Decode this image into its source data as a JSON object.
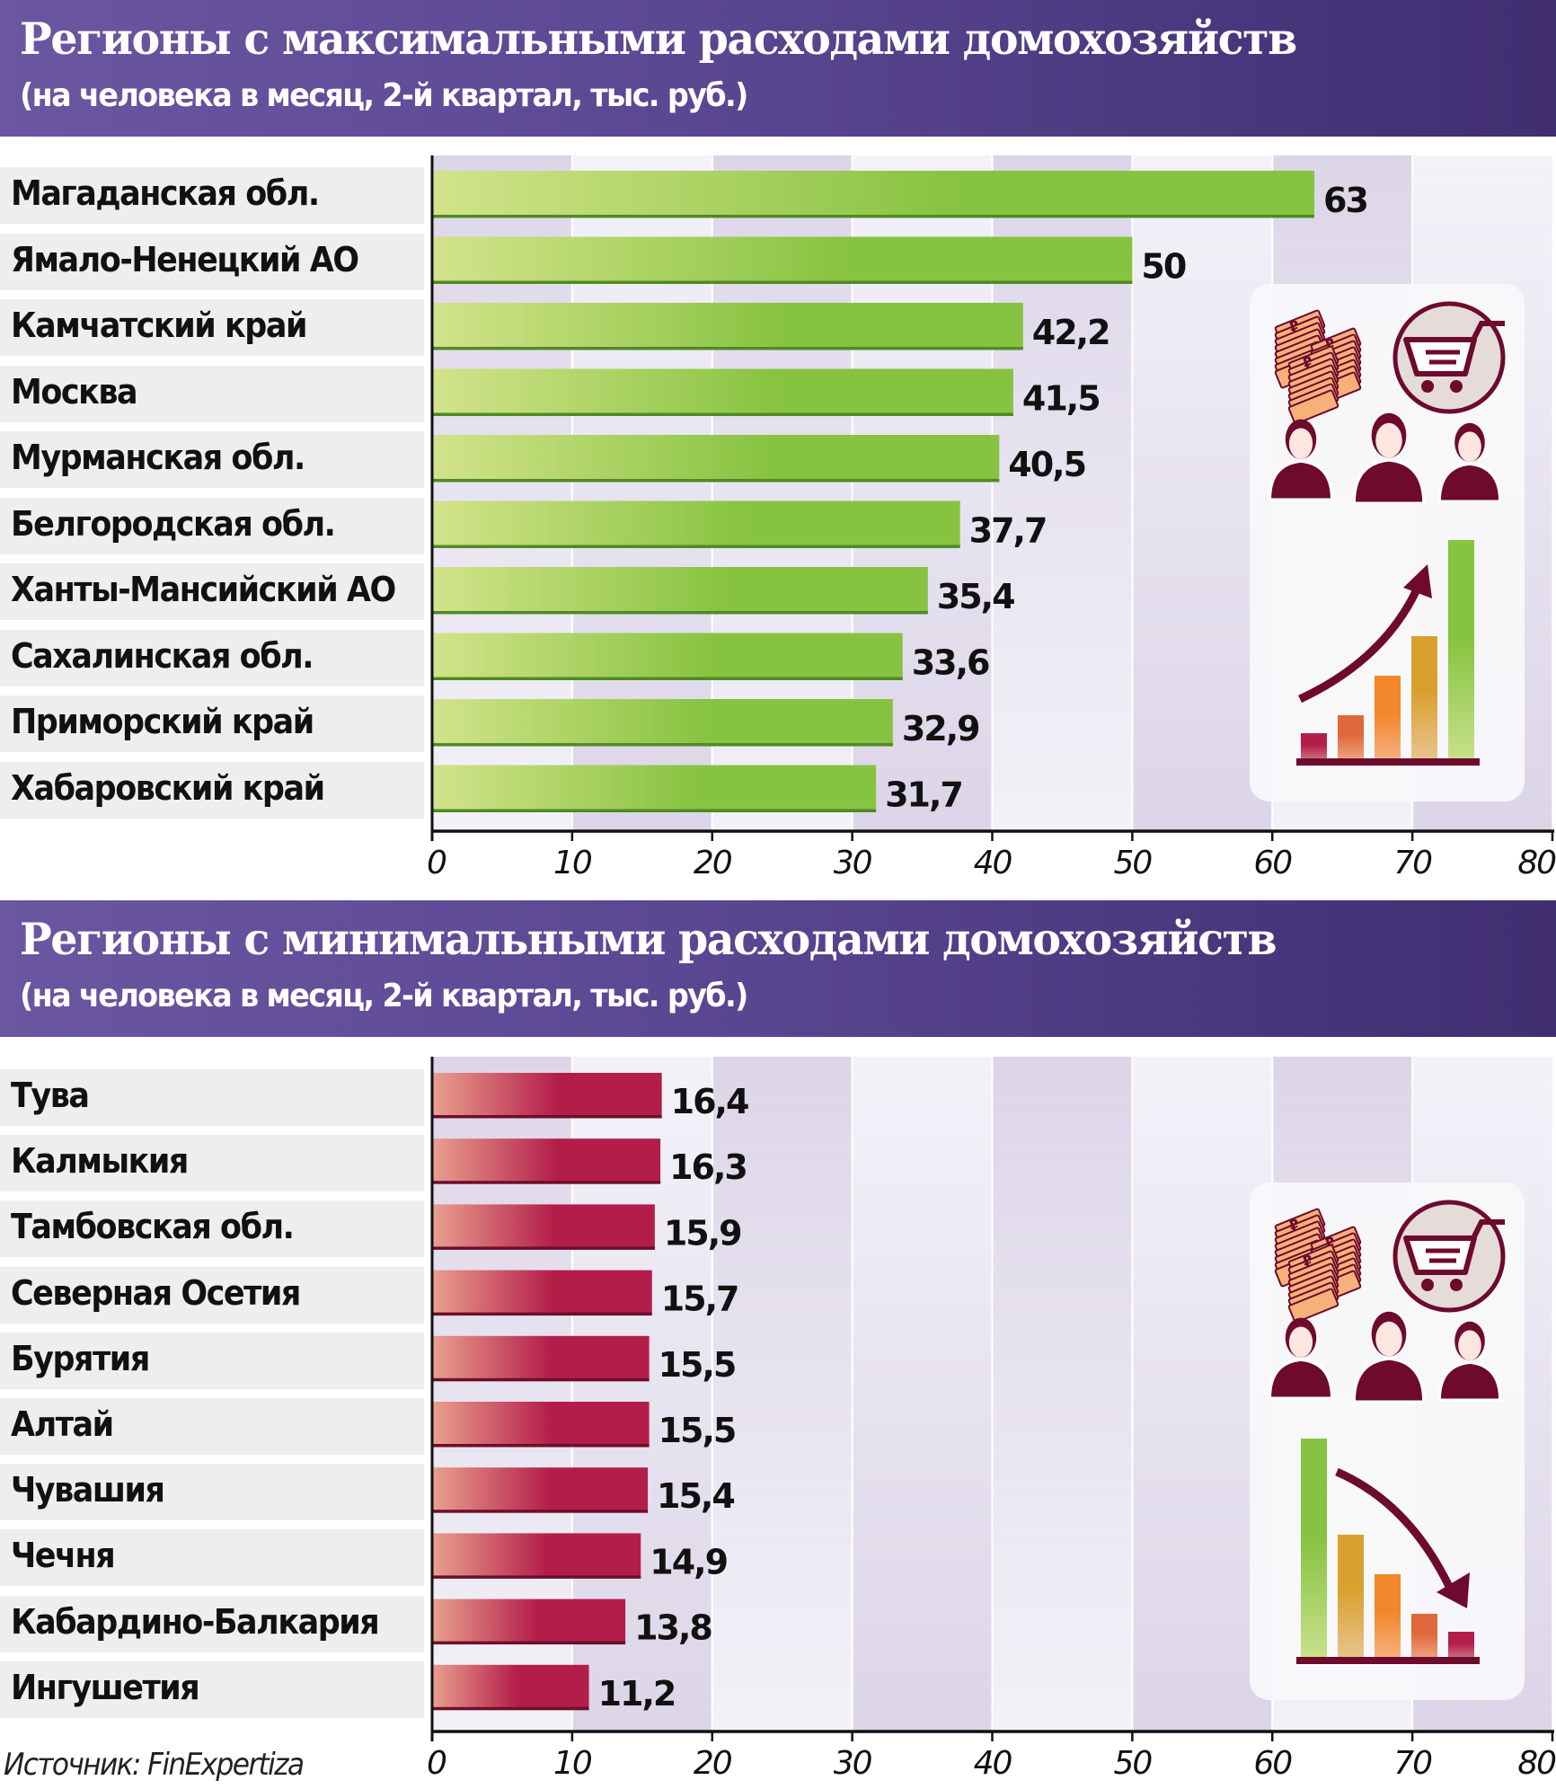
{
  "colors": {
    "header_left": "#6b56a1",
    "header_right": "#3f2e70",
    "max_bar_light": "#d3e38a",
    "max_bar_dark": "#86c340",
    "max_bar_edge": "#4f8a24",
    "min_bar_light": "#eaa08e",
    "min_bar_dark": "#b31d4a",
    "min_bar_edge": "#6e0d2a",
    "stripe_lavender": "#dcd5e8",
    "stripe_light": "#f3f2f8",
    "icon_dark": "#6d0a2d"
  },
  "chart_data": [
    {
      "type": "bar",
      "orientation": "horizontal",
      "title": "Регионы с максимальными расходами домохозяйств",
      "subtitle": "(на человека в месяц, 2-й квартал, тыс. руб.)",
      "categories": [
        "Магаданская обл.",
        "Ямало-Ненецкий АО",
        "Камчатский край",
        "Москва",
        "Мурманская обл.",
        "Белгородская обл.",
        "Ханты-Мансийский АО",
        "Сахалинская обл.",
        "Приморский край",
        "Хабаровский край"
      ],
      "values": [
        63,
        50,
        42.2,
        41.5,
        40.5,
        37.7,
        35.4,
        33.6,
        32.9,
        31.7
      ],
      "value_labels": [
        "63",
        "50",
        "42,2",
        "41,5",
        "40,5",
        "37,7",
        "35,4",
        "33,6",
        "32,9",
        "31,7"
      ],
      "xlim": [
        0,
        80
      ],
      "xticks": [
        0,
        10,
        20,
        30,
        40,
        50,
        60,
        70,
        80
      ],
      "xtick_labels": [
        "0",
        "10",
        "20",
        "30",
        "40",
        "50",
        "60",
        "70",
        "80"
      ],
      "xlabel": "",
      "ylabel": "",
      "grid": true,
      "trend_icon": "rising-bar-chart-icon"
    },
    {
      "type": "bar",
      "orientation": "horizontal",
      "title": "Регионы с минимальными расходами домохозяйств",
      "subtitle": "(на человека в месяц, 2-й квартал, тыс. руб.)",
      "categories": [
        "Тува",
        "Калмыкия",
        "Тамбовская обл.",
        "Северная Осетия",
        "Бурятия",
        "Алтай",
        "Чувашия",
        "Чечня",
        "Кабардино-Балкария",
        "Ингушетия"
      ],
      "values": [
        16.4,
        16.3,
        15.9,
        15.7,
        15.5,
        15.5,
        15.4,
        14.9,
        13.8,
        11.2
      ],
      "value_labels": [
        "16,4",
        "16,3",
        "15,9",
        "15,7",
        "15,5",
        "15,5",
        "15,4",
        "14,9",
        "13,8",
        "11,2"
      ],
      "xlim": [
        0,
        80
      ],
      "xticks": [
        0,
        10,
        20,
        30,
        40,
        50,
        60,
        70,
        80
      ],
      "xtick_labels": [
        "0",
        "10",
        "20",
        "30",
        "40",
        "50",
        "60",
        "70",
        "80"
      ],
      "xlabel": "",
      "ylabel": "",
      "grid": true,
      "trend_icon": "falling-bar-chart-icon"
    }
  ],
  "source": "Источник: FinExpertiza"
}
